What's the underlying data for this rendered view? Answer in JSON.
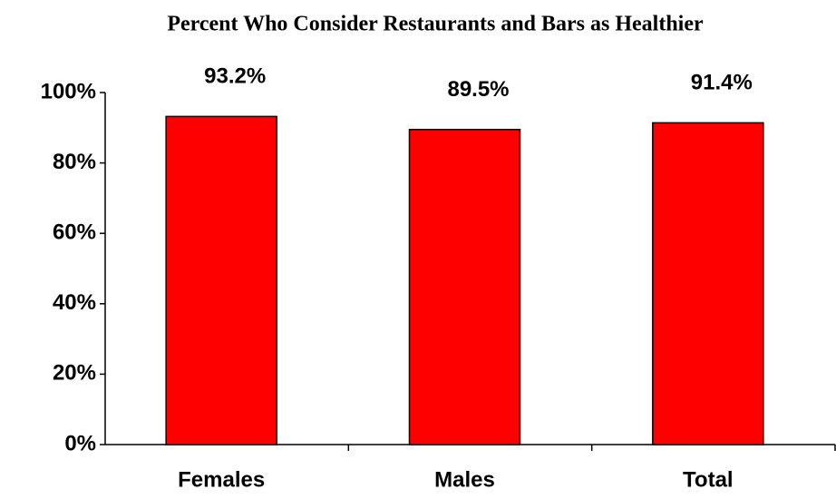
{
  "chart_data": {
    "type": "bar",
    "title": "Percent Who Consider Restaurants and Bars as Healthier",
    "categories": [
      "Females",
      "Males",
      "Total"
    ],
    "values": [
      93.2,
      89.5,
      91.4
    ],
    "value_labels": [
      "93.2%",
      "89.5%",
      "91.4%"
    ],
    "color": "#ff0000",
    "ylim": [
      0,
      100
    ],
    "yticks": [
      {
        "value": 0,
        "label": "0%"
      },
      {
        "value": 20,
        "label": "20%"
      },
      {
        "value": 40,
        "label": "40%"
      },
      {
        "value": 60,
        "label": "60%"
      },
      {
        "value": 80,
        "label": "80%"
      },
      {
        "value": 100,
        "label": "100%"
      }
    ],
    "grid": false
  }
}
